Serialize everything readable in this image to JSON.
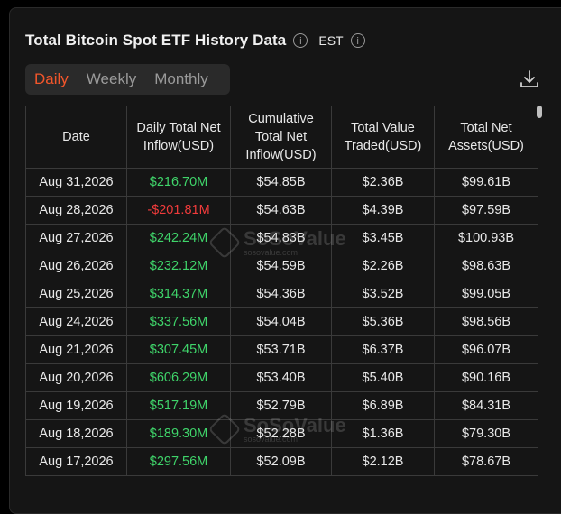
{
  "header": {
    "title": "Total Bitcoin Spot ETF History Data",
    "timezone": "EST"
  },
  "tabs": [
    {
      "label": "Daily",
      "active": true
    },
    {
      "label": "Weekly",
      "active": false
    },
    {
      "label": "Monthly",
      "active": false
    }
  ],
  "table": {
    "columns": [
      "Date",
      "Daily Total Net Inflow(USD)",
      "Cumulative Total Net Inflow(USD)",
      "Total Value Traded(USD)",
      "Total Net Assets(USD)"
    ],
    "rows": [
      [
        "Aug 31,2026",
        "$216.70M",
        "$54.85B",
        "$2.36B",
        "$99.61B"
      ],
      [
        "Aug 28,2026",
        "-$201.81M",
        "$54.63B",
        "$4.39B",
        "$97.59B"
      ],
      [
        "Aug 27,2026",
        "$242.24M",
        "$54.83B",
        "$3.45B",
        "$100.93B"
      ],
      [
        "Aug 26,2026",
        "$232.12M",
        "$54.59B",
        "$2.26B",
        "$98.63B"
      ],
      [
        "Aug 25,2026",
        "$314.37M",
        "$54.36B",
        "$3.52B",
        "$99.05B"
      ],
      [
        "Aug 24,2026",
        "$337.56M",
        "$54.04B",
        "$5.36B",
        "$98.56B"
      ],
      [
        "Aug 21,2026",
        "$307.45M",
        "$53.71B",
        "$6.37B",
        "$96.07B"
      ],
      [
        "Aug 20,2026",
        "$606.29M",
        "$53.40B",
        "$5.40B",
        "$90.16B"
      ],
      [
        "Aug 19,2026",
        "$517.19M",
        "$52.79B",
        "$6.89B",
        "$84.31B"
      ],
      [
        "Aug 18,2026",
        "$189.30M",
        "$52.28B",
        "$1.36B",
        "$79.30B"
      ],
      [
        "Aug 17,2026",
        "$297.56M",
        "$52.09B",
        "$2.12B",
        "$78.67B"
      ]
    ]
  },
  "colors": {
    "positive": "#3fd46a",
    "negative": "#ef3b3b",
    "accent": "#f2562b"
  },
  "watermark": {
    "name": "SoSoValue",
    "url": "sosovalue.com"
  }
}
